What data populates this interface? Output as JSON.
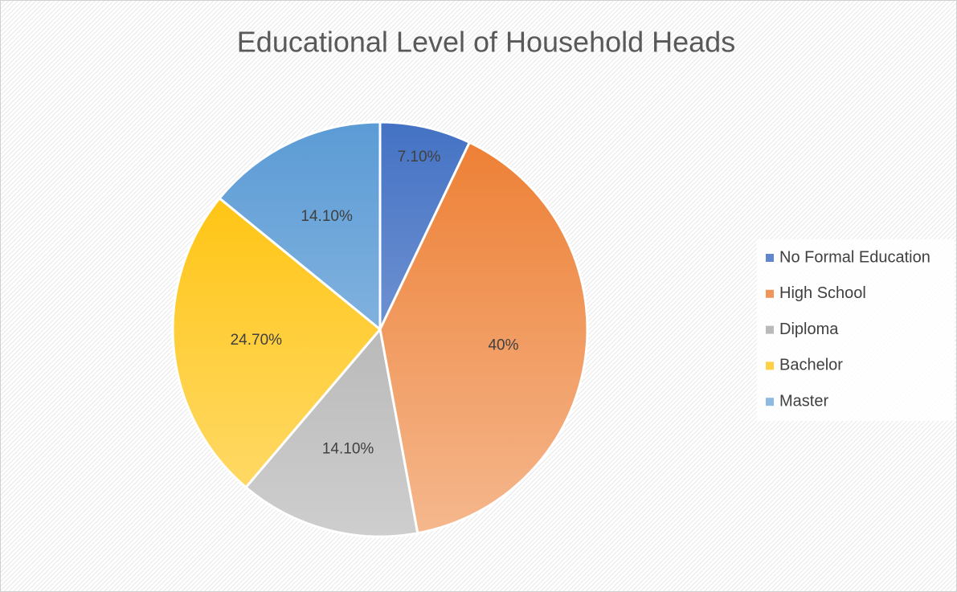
{
  "chart_data": {
    "type": "pie",
    "title": "Educational Level of Household Heads",
    "categories": [
      "No Formal Education",
      "High School",
      "Diploma",
      "Bachelor",
      "Master"
    ],
    "values": [
      7.1,
      40,
      14.1,
      24.7,
      14.1
    ],
    "value_labels": [
      "7.10%",
      "40%",
      "14.10%",
      "24.70%",
      "14.10%"
    ],
    "colors": [
      "#4472c4",
      "#ed7d31",
      "#a5a5a5",
      "#ffc000",
      "#5b9bd5"
    ],
    "legend": "right"
  }
}
